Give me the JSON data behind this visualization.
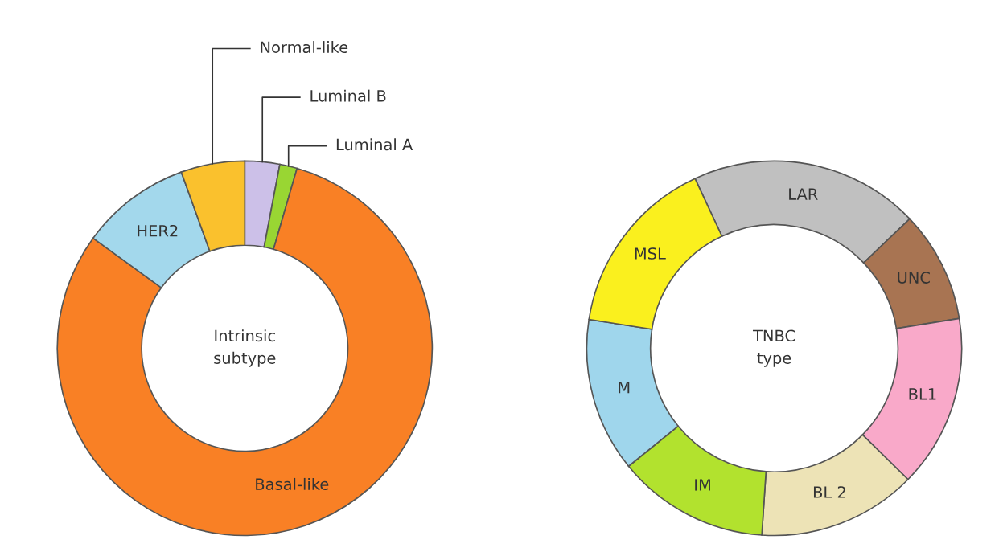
{
  "chart_data": [
    {
      "type": "donut",
      "title": "Intrinsic\nsubtype",
      "categories": [
        "Luminal B",
        "Luminal A",
        "Basal-like",
        "HER2",
        "Normal-like"
      ],
      "values": [
        3,
        1.5,
        80.5,
        9.5,
        5.5
      ],
      "colors": [
        "#ccc0e8",
        "#99d633",
        "#f98025",
        "#a3d8ec",
        "#fac12d"
      ],
      "legend": false
    },
    {
      "type": "donut",
      "title": "TNBC\ntype",
      "categories": [
        "LAR",
        "UNC",
        "BL1",
        "BL 2",
        "IM",
        "M",
        "MSL"
      ],
      "values": [
        19.8,
        9.6,
        14.9,
        13.7,
        13.1,
        13.3,
        15.6
      ],
      "colors": [
        "#c0c0c0",
        "#a87452",
        "#f9a9c9",
        "#ede3b6",
        "#b2e22e",
        "#9fd6ec",
        "#faf01e"
      ],
      "legend": false
    }
  ]
}
